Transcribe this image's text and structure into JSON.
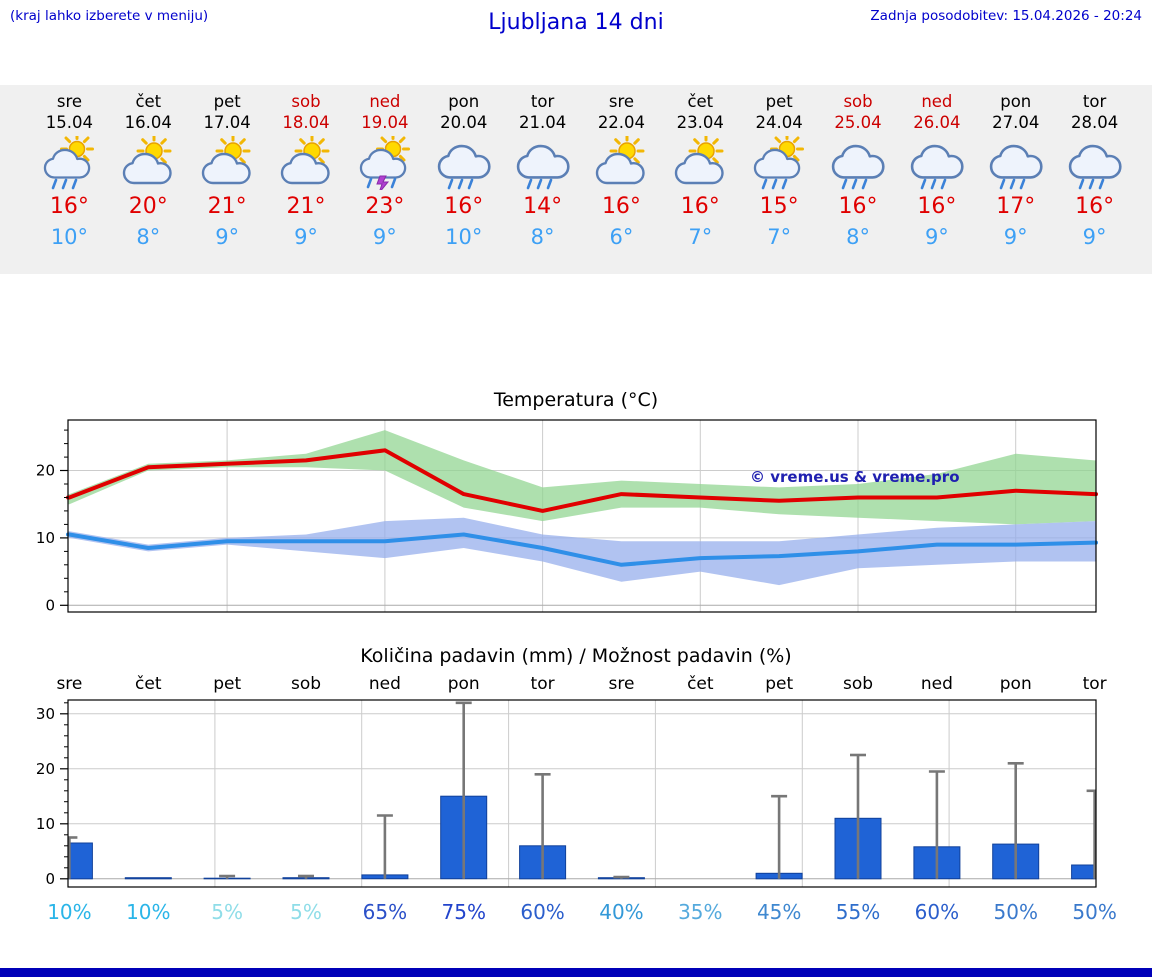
{
  "header": {
    "left_note": "(kraj lahko izberete v meniju)",
    "title": "Ljubljana 14 dni",
    "last_update": "Zadnja posodobitev: 15.04.2026 - 20:24"
  },
  "colors": {
    "header_blue": "#0000cc",
    "weekend_red": "#cc0000",
    "high_red": "#e00000",
    "low_blue": "#3da0f5",
    "strip_background": "#f0f0f0",
    "footer_blue": "#0000b8"
  },
  "forecast_strip": {
    "days": [
      {
        "name": "sre",
        "date": "15.04",
        "weekend": false,
        "icon": "sun-cloud-rain",
        "high": "16°",
        "low": "10°"
      },
      {
        "name": "čet",
        "date": "16.04",
        "weekend": false,
        "icon": "sun-cloud",
        "high": "20°",
        "low": "8°"
      },
      {
        "name": "pet",
        "date": "17.04",
        "weekend": false,
        "icon": "sun-cloud",
        "high": "21°",
        "low": "9°"
      },
      {
        "name": "sob",
        "date": "18.04",
        "weekend": true,
        "icon": "sun-cloud",
        "high": "21°",
        "low": "9°"
      },
      {
        "name": "ned",
        "date": "19.04",
        "weekend": true,
        "icon": "sun-cloud-thunder",
        "high": "23°",
        "low": "9°"
      },
      {
        "name": "pon",
        "date": "20.04",
        "weekend": false,
        "icon": "cloud-rain",
        "high": "16°",
        "low": "10°"
      },
      {
        "name": "tor",
        "date": "21.04",
        "weekend": false,
        "icon": "cloud-rain",
        "high": "14°",
        "low": "8°"
      },
      {
        "name": "sre",
        "date": "22.04",
        "weekend": false,
        "icon": "sun-cloud",
        "high": "16°",
        "low": "6°"
      },
      {
        "name": "čet",
        "date": "23.04",
        "weekend": false,
        "icon": "sun-cloud",
        "high": "16°",
        "low": "7°"
      },
      {
        "name": "pet",
        "date": "24.04",
        "weekend": false,
        "icon": "sun-cloud-rain",
        "high": "15°",
        "low": "7°"
      },
      {
        "name": "sob",
        "date": "25.04",
        "weekend": true,
        "icon": "cloud-rain",
        "high": "16°",
        "low": "8°"
      },
      {
        "name": "ned",
        "date": "26.04",
        "weekend": true,
        "icon": "cloud-rain",
        "high": "16°",
        "low": "9°"
      },
      {
        "name": "pon",
        "date": "27.04",
        "weekend": false,
        "icon": "cloud-rain",
        "high": "17°",
        "low": "9°"
      },
      {
        "name": "tor",
        "date": "28.04",
        "weekend": false,
        "icon": "cloud-rain",
        "high": "16°",
        "low": "9°"
      }
    ]
  },
  "chart_data": [
    {
      "type": "line",
      "title": "Temperatura (°C)",
      "watermark": "© vreme.us & vreme.pro",
      "watermark_color": "#2020b0",
      "x_days": [
        "sre",
        "čet",
        "pet",
        "sob",
        "ned",
        "pon",
        "tor",
        "sre",
        "čet",
        "pet",
        "sob",
        "ned",
        "pon",
        "tor"
      ],
      "ylim": [
        -1,
        27.5
      ],
      "yticks": [
        0,
        10,
        20
      ],
      "grid_x_indices": [
        2,
        4,
        6,
        8,
        10,
        12
      ],
      "series": [
        {
          "name": "max-temperature",
          "color": "#e00000",
          "values": [
            16,
            20.5,
            21,
            21.5,
            23,
            16.5,
            14,
            16.5,
            16,
            15.5,
            16,
            16,
            17,
            16.5
          ]
        },
        {
          "name": "min-temperature",
          "color": "#2f8fe8",
          "values": [
            10.5,
            8.5,
            9.5,
            9.5,
            9.5,
            10.5,
            8.5,
            6,
            7,
            7.3,
            8,
            9,
            9,
            9.3
          ]
        }
      ],
      "bands": [
        {
          "name": "max-range",
          "color": "#8fd48f",
          "upper": [
            16.5,
            21,
            21.5,
            22.5,
            26,
            21.5,
            17.5,
            18.5,
            18,
            17.5,
            18,
            19.5,
            22.5,
            21.5
          ],
          "lower": [
            15,
            20,
            20.5,
            20.5,
            20,
            14.5,
            12.5,
            14.5,
            14.5,
            13.5,
            13,
            12.5,
            12,
            12.5
          ]
        },
        {
          "name": "min-range",
          "color": "#93acec",
          "upper": [
            11,
            9,
            10,
            10.5,
            12.5,
            13,
            10.5,
            9.5,
            9.5,
            9.5,
            10.5,
            11.5,
            12,
            12.5
          ],
          "lower": [
            10,
            8,
            9,
            8,
            7,
            8.5,
            6.5,
            3.5,
            5,
            3,
            5.5,
            6,
            6.5,
            6.5
          ]
        }
      ]
    },
    {
      "type": "bar",
      "title": "Količina padavin (mm) / Možnost padavin (%)",
      "categories": [
        "sre",
        "čet",
        "pet",
        "sob",
        "ned",
        "pon",
        "tor",
        "sre",
        "čet",
        "pet",
        "sob",
        "ned",
        "pon",
        "tor"
      ],
      "values": [
        6.5,
        0.2,
        0.1,
        0.2,
        0.7,
        15,
        6,
        0.2,
        0,
        1,
        11,
        5.8,
        6.3,
        2.5
      ],
      "whiskers": [
        7.5,
        0,
        0.5,
        0.5,
        11.5,
        32,
        19,
        0.3,
        0,
        15,
        22.5,
        19.5,
        21,
        16
      ],
      "ylim": [
        -1.5,
        32.5
      ],
      "yticks": [
        0,
        10,
        20,
        30
      ],
      "bar_color": "#1f63d6",
      "bar_edge_color": "#10409a",
      "whisker_color": "#777777",
      "probabilities": [
        {
          "label": "10%",
          "color": "#2ab5e8"
        },
        {
          "label": "10%",
          "color": "#2ab5e8"
        },
        {
          "label": "5%",
          "color": "#8fdde8"
        },
        {
          "label": "5%",
          "color": "#8fdde8"
        },
        {
          "label": "65%",
          "color": "#2b50c8"
        },
        {
          "label": "75%",
          "color": "#2244cc"
        },
        {
          "label": "60%",
          "color": "#2b5ecc"
        },
        {
          "label": "40%",
          "color": "#3399d8"
        },
        {
          "label": "35%",
          "color": "#55aadd"
        },
        {
          "label": "45%",
          "color": "#3f88d0"
        },
        {
          "label": "55%",
          "color": "#2f6ecc"
        },
        {
          "label": "60%",
          "color": "#2b5ecc"
        },
        {
          "label": "50%",
          "color": "#3a79cc"
        },
        {
          "label": "50%",
          "color": "#3a79cc"
        }
      ]
    }
  ]
}
